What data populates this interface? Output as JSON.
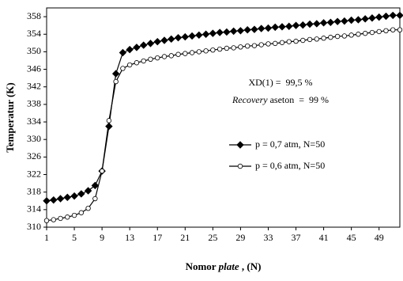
{
  "chart_data": {
    "type": "line",
    "y_label": "Temperatur (K)",
    "x_label": [
      {
        "text": "Nomor "
      },
      {
        "text": "plate",
        "italic": true
      },
      {
        "text": " , (N)"
      }
    ],
    "annotations": [
      [
        {
          "text": "XD(1) =  99,5 %"
        }
      ],
      [
        {
          "text": "Recovery",
          "italic": true
        },
        {
          "text": " aseton  =  99 %"
        }
      ]
    ],
    "x": [
      1,
      2,
      3,
      4,
      5,
      6,
      7,
      8,
      9,
      10,
      11,
      12,
      13,
      14,
      15,
      16,
      17,
      18,
      19,
      20,
      21,
      22,
      23,
      24,
      25,
      26,
      27,
      28,
      29,
      30,
      31,
      32,
      33,
      34,
      35,
      36,
      37,
      38,
      39,
      40,
      41,
      42,
      43,
      44,
      45,
      46,
      47,
      48,
      49,
      50,
      51,
      52
    ],
    "series": [
      {
        "name": "p = 0,7 atm, N=50",
        "color": "#000000",
        "marker": "diamond",
        "marker_fill": "#000000",
        "values": [
          316.0,
          316.2,
          316.5,
          316.8,
          317.1,
          317.6,
          318.3,
          319.5,
          322.8,
          333.0,
          345.0,
          349.8,
          350.5,
          351.0,
          351.5,
          351.9,
          352.3,
          352.6,
          352.9,
          353.2,
          353.4,
          353.6,
          353.8,
          354.0,
          354.2,
          354.4,
          354.5,
          354.7,
          354.8,
          355.0,
          355.1,
          355.3,
          355.4,
          355.6,
          355.7,
          355.8,
          356.0,
          356.1,
          356.3,
          356.4,
          356.6,
          356.7,
          356.9,
          357.0,
          357.2,
          357.3,
          357.5,
          357.7,
          357.9,
          358.1,
          358.3,
          358.3
        ]
      },
      {
        "name": "p = 0,6 atm, N=50",
        "color": "#000000",
        "marker": "circle",
        "marker_fill": "#ffffff",
        "values": [
          311.5,
          311.7,
          312.0,
          312.3,
          312.7,
          313.3,
          314.3,
          316.5,
          322.8,
          334.3,
          343.2,
          346.2,
          347.0,
          347.5,
          347.9,
          348.3,
          348.6,
          348.9,
          349.1,
          349.4,
          349.6,
          349.8,
          350.0,
          350.2,
          350.4,
          350.6,
          350.8,
          350.9,
          351.1,
          351.3,
          351.4,
          351.6,
          351.8,
          351.9,
          352.1,
          352.3,
          352.4,
          352.6,
          352.8,
          352.9,
          353.1,
          353.3,
          353.5,
          353.6,
          353.8,
          354.0,
          354.2,
          354.4,
          354.6,
          354.8,
          355.0,
          355.0
        ]
      }
    ],
    "xlim": [
      1,
      52
    ],
    "xticks": [
      1,
      5,
      9,
      13,
      17,
      21,
      25,
      29,
      33,
      37,
      41,
      45,
      49
    ],
    "ylim": [
      310,
      360
    ],
    "yticks": [
      310,
      314,
      318,
      322,
      326,
      330,
      334,
      338,
      342,
      346,
      350,
      354,
      358
    ],
    "grid": false,
    "legend": "center-right"
  }
}
